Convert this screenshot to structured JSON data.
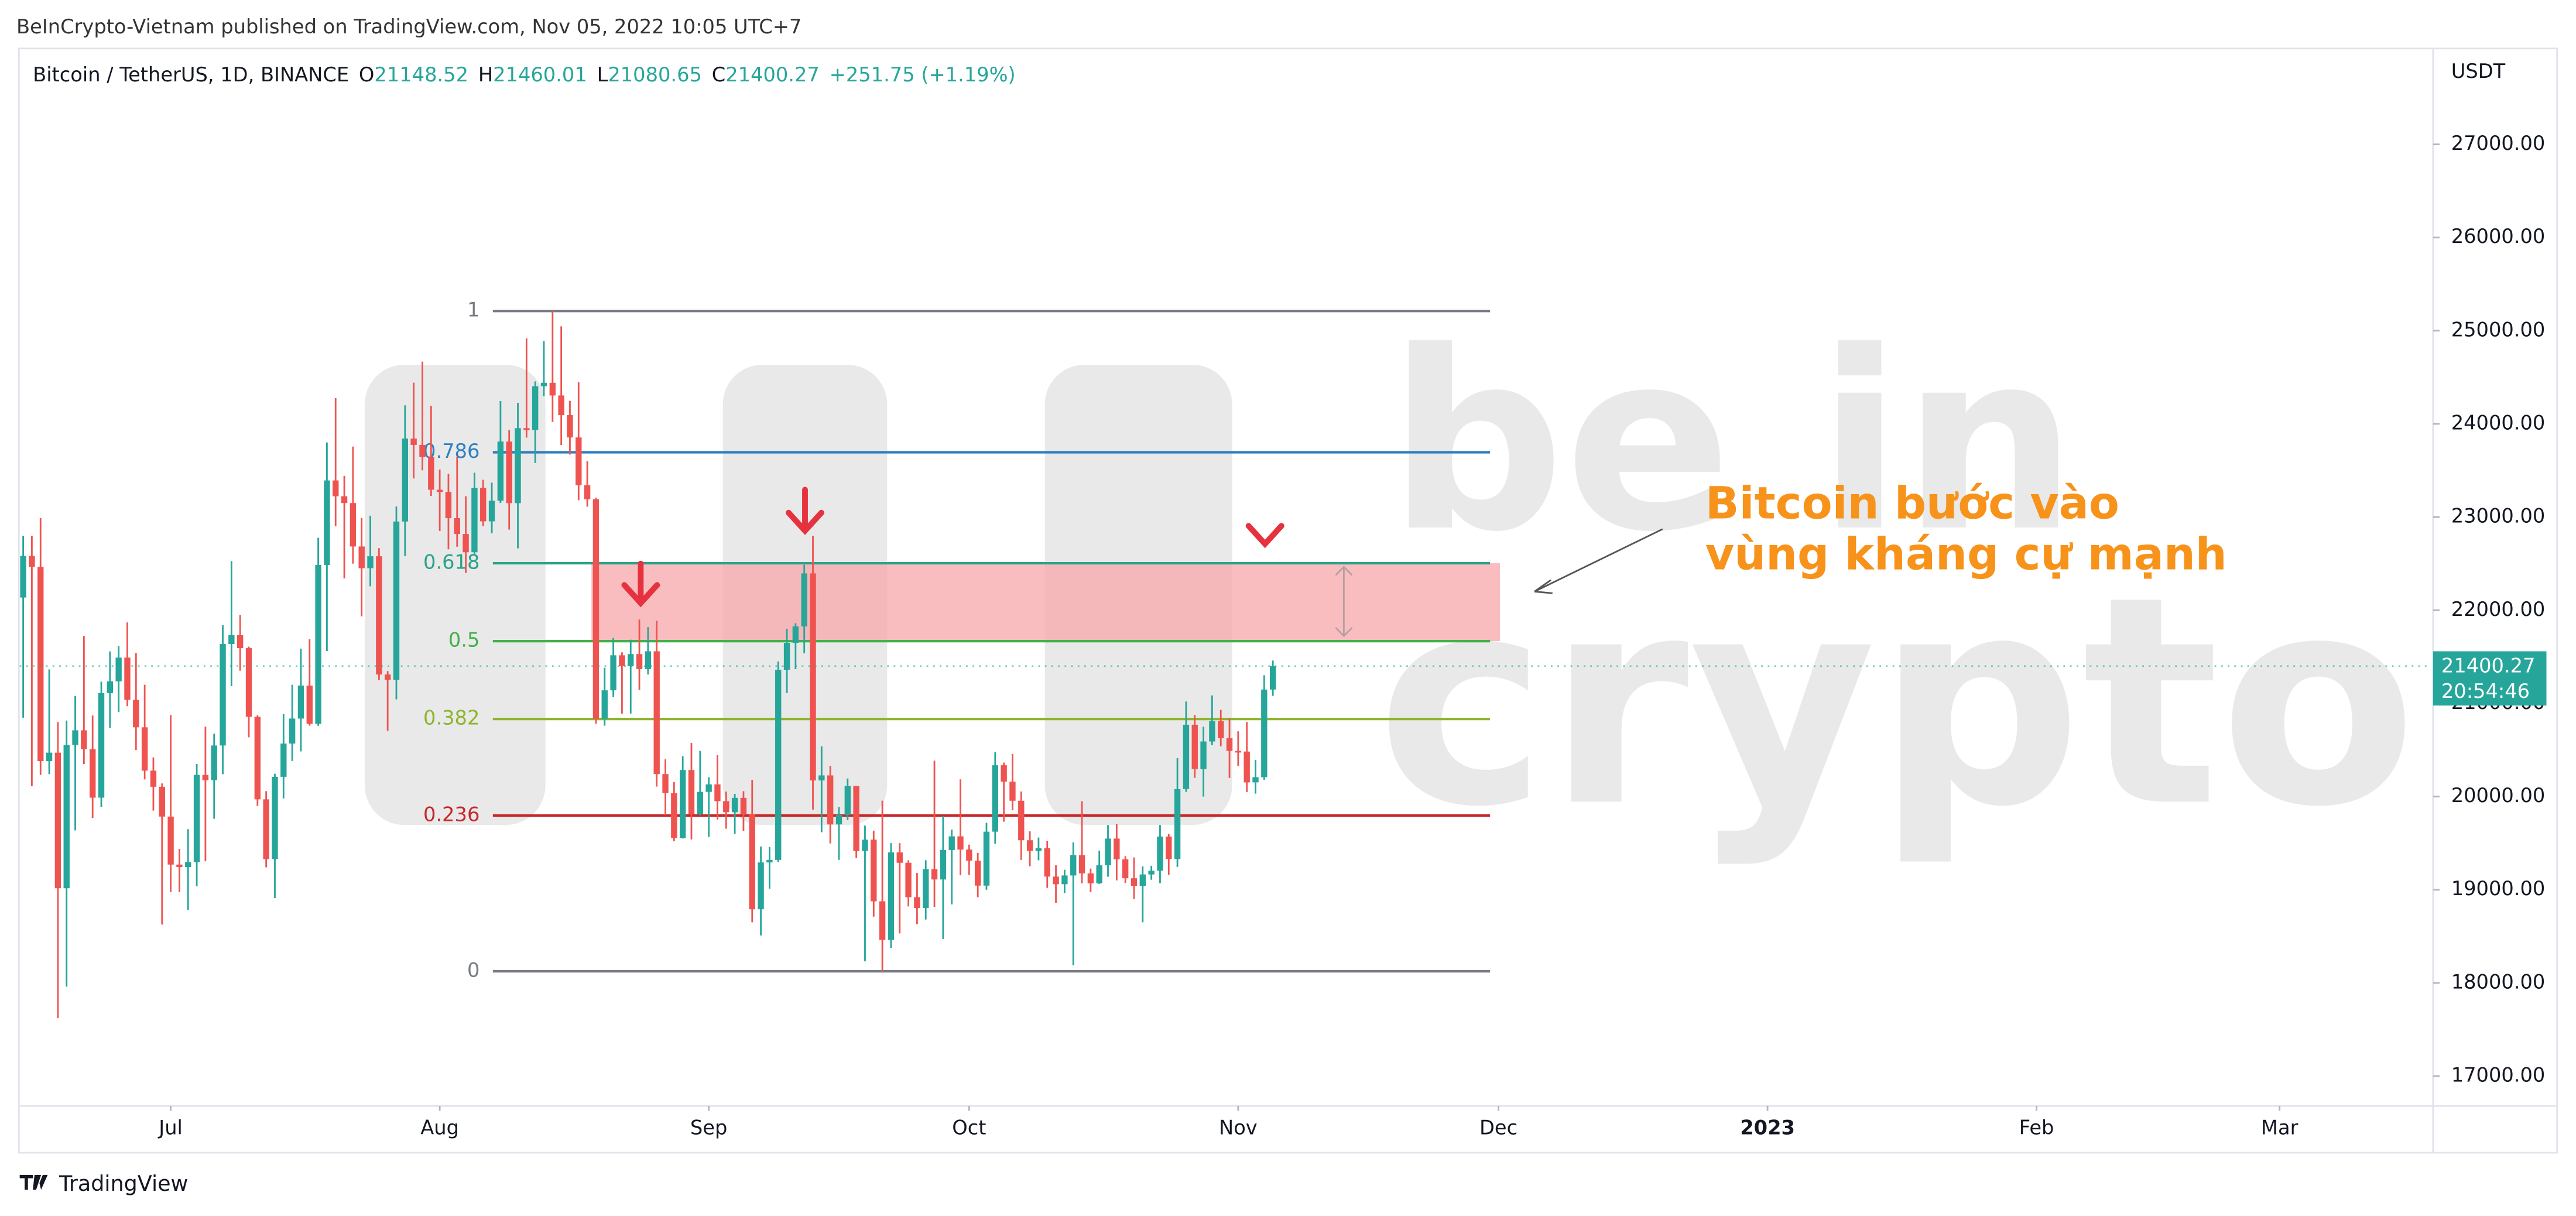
{
  "header": {
    "published": "BeInCrypto-Vietnam published on TradingView.com, Nov 05, 2022 10:05 UTC+7"
  },
  "footer": {
    "brand": "TradingView"
  },
  "chart_data": {
    "type": "candlestick",
    "symbol": "Bitcoin / TetherUS, 1D, BINANCE",
    "ohlc_header": [
      {
        "prefix": "O",
        "value": 21148.52
      },
      {
        "prefix": "H",
        "value": 21460.01
      },
      {
        "prefix": "L",
        "value": 21080.65
      },
      {
        "prefix": "C",
        "value": 21400.27
      }
    ],
    "change_label": "+251.75 (+1.19%)",
    "y_axis_label": "USDT",
    "up_color": "#26a69a",
    "down_color": "#ef5350",
    "candles": [
      [
        22136,
        22800,
        20846,
        22583
      ],
      [
        22583,
        22800,
        20111,
        22465
      ],
      [
        22465,
        22990,
        20232,
        20380
      ],
      [
        20380,
        21365,
        20240,
        20471
      ],
      [
        20471,
        20800,
        17622,
        19016
      ],
      [
        19016,
        20816,
        17960,
        20554
      ],
      [
        20554,
        21078,
        19637,
        20711
      ],
      [
        20711,
        21723,
        20348,
        20509
      ],
      [
        20509,
        20870,
        19771,
        19988
      ],
      [
        19988,
        21233,
        19890,
        21110
      ],
      [
        21110,
        21558,
        20739,
        21237
      ],
      [
        21237,
        21614,
        20906,
        21491
      ],
      [
        21491,
        21869,
        20970,
        21038
      ],
      [
        21038,
        21540,
        20500,
        20743
      ],
      [
        20743,
        21200,
        20184,
        20278
      ],
      [
        20278,
        20420,
        19849,
        20105
      ],
      [
        20105,
        20141,
        18626,
        19785
      ],
      [
        19785,
        20876,
        18975,
        19270
      ],
      [
        19270,
        19437,
        18975,
        19243
      ],
      [
        19243,
        19650,
        18782,
        19297
      ],
      [
        19297,
        20350,
        19038,
        20232
      ],
      [
        20232,
        20750,
        19305,
        20176
      ],
      [
        20176,
        20675,
        19762,
        20548
      ],
      [
        20548,
        21838,
        20240,
        21637
      ],
      [
        21637,
        22527,
        21185,
        21732
      ],
      [
        21732,
        21950,
        21351,
        21593
      ],
      [
        21593,
        21609,
        20636,
        20856
      ],
      [
        20856,
        20872,
        19900,
        19970
      ],
      [
        19970,
        20058,
        19240,
        19329
      ],
      [
        19329,
        20245,
        18910,
        20212
      ],
      [
        20212,
        20885,
        19980,
        20569
      ],
      [
        20569,
        21200,
        20382,
        20837
      ],
      [
        20837,
        21588,
        20484,
        21191
      ],
      [
        21191,
        21688,
        20761,
        20781
      ],
      [
        20781,
        22777,
        20759,
        22486
      ],
      [
        22486,
        23800,
        21561,
        23393
      ],
      [
        23393,
        24276,
        22900,
        23223
      ],
      [
        23223,
        23442,
        22341,
        23150
      ],
      [
        23150,
        23756,
        22500,
        22684
      ],
      [
        22684,
        22990,
        21934,
        22451
      ],
      [
        22451,
        23014,
        22257,
        22579
      ],
      [
        22579,
        22666,
        21250,
        21310
      ],
      [
        21310,
        21347,
        20706,
        21254
      ],
      [
        21254,
        23112,
        21043,
        22952
      ],
      [
        22952,
        24199,
        22582,
        23842
      ],
      [
        23842,
        24442,
        23414,
        23774
      ],
      [
        23774,
        24668,
        23502,
        23643
      ],
      [
        23643,
        24194,
        23227,
        23293
      ],
      [
        23293,
        23509,
        22850,
        23269
      ],
      [
        23269,
        23463,
        22654,
        22988
      ],
      [
        22988,
        23647,
        22681,
        22818
      ],
      [
        22818,
        23223,
        22400,
        22622
      ],
      [
        22622,
        23475,
        22586,
        23312
      ],
      [
        23312,
        23400,
        22900,
        22954
      ],
      [
        22954,
        23369,
        22826,
        23175
      ],
      [
        23175,
        24245,
        23151,
        23810
      ],
      [
        23810,
        23933,
        22865,
        23149
      ],
      [
        23149,
        24226,
        22664,
        23954
      ],
      [
        23954,
        24918,
        23852,
        23934
      ],
      [
        23934,
        24456,
        23580,
        24403
      ],
      [
        24403,
        24888,
        24296,
        24441
      ],
      [
        24441,
        25211,
        24021,
        24305
      ],
      [
        24305,
        25047,
        23773,
        24094
      ],
      [
        24094,
        24247,
        23671,
        23854
      ],
      [
        23854,
        24446,
        23180,
        23342
      ],
      [
        23342,
        23600,
        23111,
        23191
      ],
      [
        23191,
        23208,
        20783,
        20834
      ],
      [
        20834,
        21382,
        20761,
        21140
      ],
      [
        21140,
        21700,
        21069,
        21516
      ],
      [
        21516,
        21548,
        20890,
        21399
      ],
      [
        21399,
        21684,
        20891,
        21529
      ],
      [
        21529,
        21900,
        21145,
        21368
      ],
      [
        21368,
        21819,
        21310,
        21559
      ],
      [
        21559,
        21886,
        20107,
        20241
      ],
      [
        20241,
        20400,
        19800,
        20037
      ],
      [
        20037,
        20155,
        19520,
        19555
      ],
      [
        19555,
        20433,
        19550,
        20285
      ],
      [
        20285,
        20575,
        19540,
        19811
      ],
      [
        19811,
        20490,
        19797,
        20050
      ],
      [
        20050,
        20208,
        19565,
        20131
      ],
      [
        20131,
        20444,
        19753,
        19951
      ],
      [
        19951,
        20054,
        19655,
        19832
      ],
      [
        19832,
        20029,
        19600,
        19986
      ],
      [
        19986,
        20058,
        19633,
        19813
      ],
      [
        19813,
        20179,
        18650,
        18790
      ],
      [
        18790,
        19464,
        18510,
        19293
      ],
      [
        19293,
        19458,
        19012,
        19320
      ],
      [
        19320,
        21450,
        19297,
        21361
      ],
      [
        21361,
        21800,
        21111,
        21649
      ],
      [
        21649,
        21860,
        21367,
        21826
      ],
      [
        21826,
        22488,
        21538,
        22395
      ],
      [
        22395,
        22799,
        19860,
        20173
      ],
      [
        20173,
        20540,
        19617,
        20227
      ],
      [
        20227,
        20330,
        19497,
        19701
      ],
      [
        19701,
        19888,
        19320,
        19803
      ],
      [
        19803,
        20194,
        19748,
        20113
      ],
      [
        20113,
        20115,
        19341,
        19416
      ],
      [
        19416,
        19689,
        18232,
        19538
      ],
      [
        19538,
        19634,
        18711,
        18876
      ],
      [
        18876,
        19956,
        18125,
        18461
      ],
      [
        18461,
        19500,
        18376,
        19401
      ],
      [
        19401,
        19500,
        18531,
        19289
      ],
      [
        19289,
        19316,
        18821,
        18920
      ],
      [
        18920,
        19180,
        18630,
        18803
      ],
      [
        18803,
        19316,
        18680,
        19222
      ],
      [
        19222,
        20385,
        18816,
        19110
      ],
      [
        19110,
        19790,
        18471,
        19426
      ],
      [
        19426,
        19646,
        18843,
        19573
      ],
      [
        19573,
        20185,
        19155,
        19431
      ],
      [
        19431,
        19484,
        19159,
        19312
      ],
      [
        19312,
        19395,
        18920,
        19044
      ],
      [
        19044,
        19719,
        19000,
        19623
      ],
      [
        19623,
        20475,
        19495,
        20336
      ],
      [
        20336,
        20365,
        19730,
        20160
      ],
      [
        20160,
        20456,
        19853,
        19955
      ],
      [
        19955,
        20055,
        19320,
        19531
      ],
      [
        19531,
        19627,
        19252,
        19417
      ],
      [
        19417,
        19560,
        19316,
        19446
      ],
      [
        19446,
        19525,
        19020,
        19141
      ],
      [
        19141,
        19264,
        18860,
        19059
      ],
      [
        19059,
        19214,
        18965,
        19153
      ],
      [
        19153,
        19509,
        18190,
        19372
      ],
      [
        19372,
        19951,
        19070,
        19176
      ],
      [
        19176,
        19227,
        18975,
        19069
      ],
      [
        19069,
        19420,
        19063,
        19262
      ],
      [
        19262,
        19694,
        19140,
        19549
      ],
      [
        19549,
        19706,
        19100,
        19327
      ],
      [
        19327,
        19360,
        19072,
        19123
      ],
      [
        19123,
        19347,
        18900,
        19041
      ],
      [
        19041,
        19250,
        18650,
        19164
      ],
      [
        19164,
        19257,
        19107,
        19204
      ],
      [
        19204,
        19695,
        19070,
        19571
      ],
      [
        19571,
        19600,
        19160,
        19330
      ],
      [
        19330,
        20413,
        19245,
        20080
      ],
      [
        20080,
        21020,
        20050,
        20771
      ],
      [
        20771,
        20876,
        20200,
        20295
      ],
      [
        20295,
        20750,
        20000,
        20591
      ],
      [
        20591,
        21085,
        20553,
        20809
      ],
      [
        20809,
        20931,
        20540,
        20627
      ],
      [
        20627,
        20840,
        20200,
        20490
      ],
      [
        20490,
        20700,
        20330,
        20483
      ],
      [
        20483,
        20800,
        20048,
        20152
      ],
      [
        20152,
        20393,
        20031,
        20208
      ],
      [
        20208,
        21302,
        20180,
        21148.52
      ],
      [
        21148.52,
        21460.01,
        21080.65,
        21400.27
      ]
    ],
    "xlim": [
      -0.4,
      277.5
    ],
    "xticks": [
      {
        "value": 17,
        "label": "Jul"
      },
      {
        "value": 48,
        "label": "Aug"
      },
      {
        "value": 79,
        "label": "Sep"
      },
      {
        "value": 109,
        "label": "Oct"
      },
      {
        "value": 140,
        "label": "Nov"
      },
      {
        "value": 170,
        "label": "Dec"
      },
      {
        "value": 201,
        "label": "2023"
      },
      {
        "value": 232,
        "label": "Feb"
      },
      {
        "value": 260,
        "label": "Mar"
      }
    ],
    "ylim": [
      16680,
      28020
    ],
    "yticks": [
      {
        "value": 17000,
        "label": "17000.00"
      },
      {
        "value": 18000,
        "label": "18000.00"
      },
      {
        "value": 19000,
        "label": "19000.00"
      },
      {
        "value": 20000,
        "label": "20000.00"
      },
      {
        "value": 21000,
        "label": "21000.00"
      },
      {
        "value": 22000,
        "label": "22000.00"
      },
      {
        "value": 23000,
        "label": "23000.00"
      },
      {
        "value": 24000,
        "label": "24000.00"
      },
      {
        "value": 25000,
        "label": "25000.00"
      },
      {
        "value": 26000,
        "label": "26000.00"
      },
      {
        "value": 27000,
        "label": "27000.00"
      }
    ],
    "last_price": 21400.27,
    "countdown": "20:54:46",
    "price_tag_color": "#26a69a",
    "fib_levels": [
      {
        "ratio": 1,
        "price": 25211,
        "color": "#787b86"
      },
      {
        "ratio": 0.786,
        "price": 23695,
        "color": "#2f7fc1"
      },
      {
        "ratio": 0.618,
        "price": 22504,
        "color": "#2aa38a"
      },
      {
        "ratio": 0.5,
        "price": 21668,
        "color": "#43b049"
      },
      {
        "ratio": 0.382,
        "price": 20832,
        "color": "#8db52d"
      },
      {
        "ratio": 0.236,
        "price": 19797,
        "color": "#c62828"
      },
      {
        "ratio": 0,
        "price": 18125,
        "color": "#787b86"
      }
    ],
    "zone_color": "#f7a7ab",
    "annotation": {
      "lines": [
        "Bitcoin bước vào",
        "vùng kháng cự mạnh"
      ],
      "color": "#f7931a"
    },
    "watermark": [
      "be in",
      "crypto"
    ]
  }
}
